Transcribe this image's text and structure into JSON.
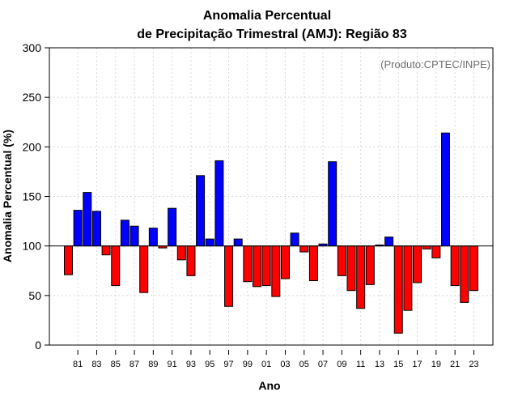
{
  "chart_data": {
    "type": "bar",
    "title": "Anomalia Percentual",
    "subtitle": "de Precipitação Trimestral (AMJ): Região 83",
    "credit": "(Produto:CPTEC/INPE)",
    "xlabel": "Ano",
    "ylabel": "Anomalia Percentual (%)",
    "ylim": [
      0,
      300
    ],
    "yticks": [
      0,
      50,
      100,
      150,
      200,
      250,
      300
    ],
    "baseline": 100,
    "grid": true,
    "categories": [
      "80",
      "81",
      "82",
      "83",
      "84",
      "85",
      "86",
      "87",
      "88",
      "89",
      "90",
      "91",
      "92",
      "93",
      "94",
      "95",
      "96",
      "97",
      "98",
      "99",
      "00",
      "01",
      "02",
      "03",
      "04",
      "05",
      "06",
      "07",
      "08",
      "09",
      "10",
      "11",
      "12",
      "13",
      "14",
      "15",
      "16",
      "17",
      "18",
      "19",
      "20",
      "21",
      "22",
      "23"
    ],
    "values": [
      71,
      136,
      154,
      135,
      91,
      60,
      126,
      120,
      53,
      118,
      98,
      138,
      86,
      70,
      171,
      107,
      186,
      39,
      107,
      64,
      59,
      60,
      49,
      67,
      113,
      94,
      65,
      102,
      185,
      70,
      55,
      37,
      61,
      101,
      109,
      12,
      35,
      63,
      97,
      88,
      214,
      60,
      43,
      55
    ],
    "tick_labels": [
      {
        "index": 1,
        "label": "81"
      },
      {
        "index": 3,
        "label": "83"
      },
      {
        "index": 5,
        "label": "85"
      },
      {
        "index": 7,
        "label": "87"
      },
      {
        "index": 9,
        "label": "89"
      },
      {
        "index": 11,
        "label": "91"
      },
      {
        "index": 13,
        "label": "93"
      },
      {
        "index": 15,
        "label": "95"
      },
      {
        "index": 17,
        "label": "97"
      },
      {
        "index": 19,
        "label": "99"
      },
      {
        "index": 21,
        "label": "01"
      },
      {
        "index": 23,
        "label": "03"
      },
      {
        "index": 25,
        "label": "05"
      },
      {
        "index": 27,
        "label": "07"
      },
      {
        "index": 29,
        "label": "09"
      },
      {
        "index": 31,
        "label": "11"
      },
      {
        "index": 33,
        "label": "13"
      },
      {
        "index": 35,
        "label": "15"
      },
      {
        "index": 37,
        "label": "17"
      },
      {
        "index": 39,
        "label": "19"
      },
      {
        "index": 41,
        "label": "21"
      },
      {
        "index": 43,
        "label": "23"
      }
    ],
    "colors": {
      "above": "#0000ff",
      "below": "#ff0000",
      "edge": "#000000"
    }
  }
}
